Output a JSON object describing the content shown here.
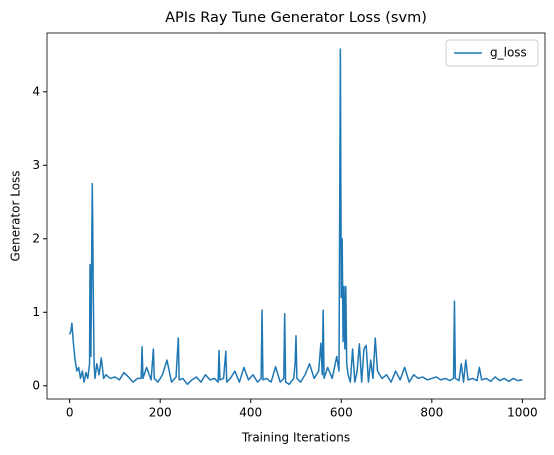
{
  "chart_data": {
    "type": "line",
    "title": "APIs Ray Tune Generator Loss (svm)",
    "xlabel": "Training Iterations",
    "ylabel": "Generator Loss",
    "x": [
      0,
      3,
      5,
      8,
      12,
      16,
      20,
      24,
      28,
      32,
      36,
      40,
      44,
      45,
      47,
      49,
      50,
      51,
      52,
      54,
      56,
      60,
      65,
      70,
      75,
      80,
      90,
      100,
      110,
      120,
      130,
      140,
      150,
      158,
      160,
      162,
      170,
      180,
      185,
      187,
      195,
      205,
      215,
      225,
      235,
      240,
      242,
      250,
      260,
      270,
      280,
      290,
      300,
      310,
      320,
      328,
      330,
      332,
      340,
      345,
      347,
      355,
      365,
      375,
      385,
      395,
      405,
      415,
      423,
      425,
      427,
      435,
      445,
      455,
      465,
      473,
      475,
      477,
      485,
      495,
      498,
      500,
      502,
      510,
      520,
      530,
      540,
      550,
      555,
      558,
      560,
      562,
      570,
      580,
      590,
      595,
      598,
      600,
      602,
      604,
      606,
      608,
      610,
      612,
      615,
      620,
      625,
      630,
      635,
      640,
      645,
      650,
      655,
      660,
      665,
      670,
      675,
      680,
      690,
      700,
      710,
      720,
      730,
      740,
      750,
      760,
      770,
      780,
      790,
      800,
      810,
      820,
      830,
      840,
      848,
      850,
      852,
      860,
      865,
      870,
      875,
      880,
      890,
      900,
      905,
      910,
      920,
      930,
      940,
      950,
      960,
      970,
      980,
      990,
      1000
    ],
    "series": [
      {
        "name": "g_loss",
        "color": "#1f77b4",
        "values": [
          0.7,
          0.75,
          0.85,
          0.6,
          0.35,
          0.2,
          0.25,
          0.1,
          0.2,
          0.05,
          0.18,
          0.1,
          0.3,
          1.65,
          0.4,
          2.0,
          2.75,
          2.2,
          1.4,
          0.3,
          0.1,
          0.3,
          0.15,
          0.38,
          0.1,
          0.15,
          0.1,
          0.12,
          0.08,
          0.18,
          0.12,
          0.05,
          0.1,
          0.1,
          0.53,
          0.1,
          0.25,
          0.08,
          0.5,
          0.1,
          0.05,
          0.15,
          0.35,
          0.05,
          0.12,
          0.65,
          0.08,
          0.1,
          0.02,
          0.08,
          0.12,
          0.05,
          0.15,
          0.08,
          0.1,
          0.05,
          0.48,
          0.08,
          0.1,
          0.47,
          0.05,
          0.1,
          0.2,
          0.05,
          0.25,
          0.08,
          0.15,
          0.05,
          0.1,
          1.03,
          0.08,
          0.1,
          0.05,
          0.26,
          0.05,
          0.1,
          0.98,
          0.05,
          0.02,
          0.1,
          0.3,
          0.68,
          0.1,
          0.05,
          0.15,
          0.3,
          0.1,
          0.2,
          0.58,
          0.15,
          1.03,
          0.1,
          0.25,
          0.1,
          0.4,
          0.2,
          4.58,
          1.2,
          2.0,
          0.6,
          1.35,
          0.5,
          1.35,
          0.3,
          0.15,
          0.05,
          0.5,
          0.05,
          0.2,
          0.57,
          0.05,
          0.5,
          0.55,
          0.05,
          0.35,
          0.1,
          0.65,
          0.2,
          0.1,
          0.15,
          0.05,
          0.2,
          0.08,
          0.25,
          0.05,
          0.15,
          0.1,
          0.12,
          0.08,
          0.1,
          0.12,
          0.08,
          0.1,
          0.07,
          0.1,
          1.15,
          0.1,
          0.07,
          0.3,
          0.05,
          0.35,
          0.08,
          0.1,
          0.07,
          0.25,
          0.08,
          0.1,
          0.06,
          0.12,
          0.07,
          0.1,
          0.06,
          0.1,
          0.07,
          0.08
        ]
      }
    ],
    "xlim": [
      -50,
      1050
    ],
    "xticks": [
      0,
      200,
      400,
      600,
      800,
      1000
    ],
    "ylim": [
      -0.18,
      4.8
    ],
    "yticks": [
      0,
      1,
      2,
      3,
      4
    ],
    "legend": "upper right"
  }
}
